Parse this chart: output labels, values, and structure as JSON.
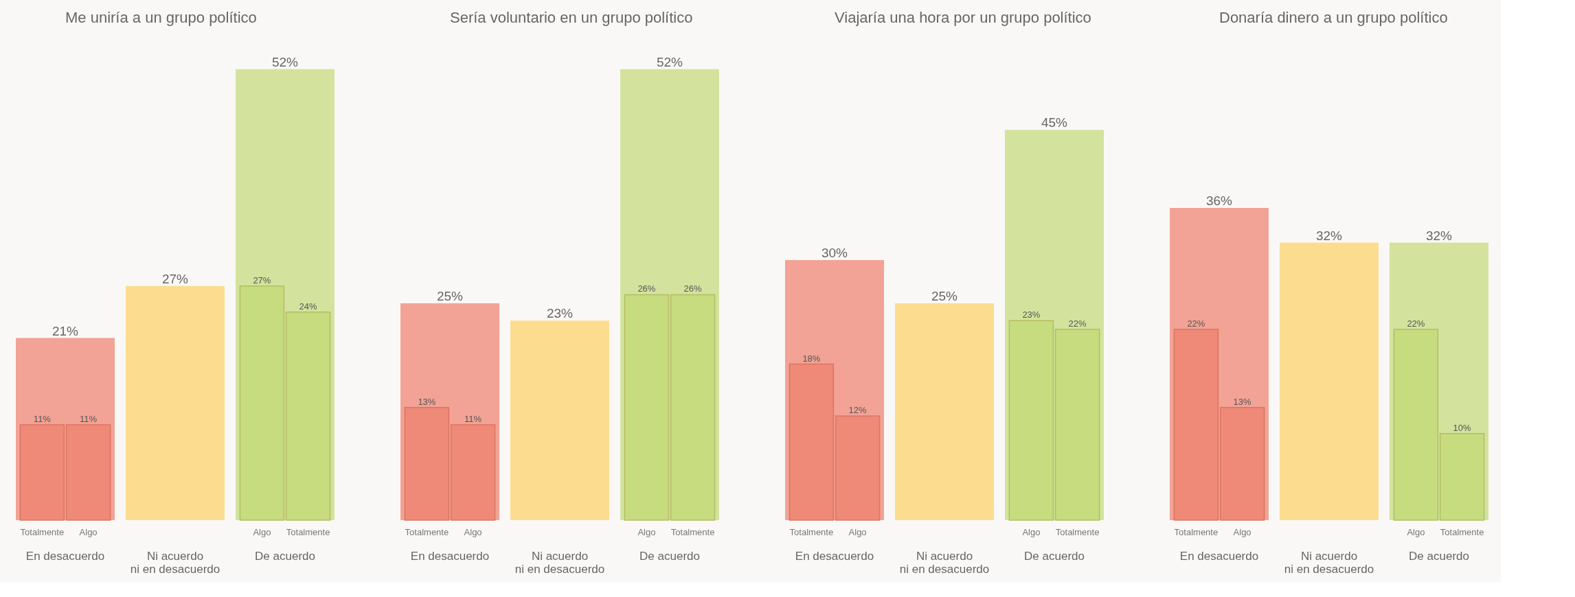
{
  "chart_data": [
    {
      "type": "bar",
      "title": "Me uniría a un grupo político",
      "categories": [
        "En desacuerdo",
        "Ni acuerdo\nni en desacuerdo",
        "De acuerdo"
      ],
      "tick_labels": "x",
      "series": [
        {
          "colors": [
            "#f2a395",
            "#fcdd8f",
            "#d3e39d"
          ],
          "values": [
            21,
            27,
            52
          ],
          "value_labels": [
            "21%",
            "27%",
            "52%"
          ]
        },
        {
          "name": "Totalmente",
          "colors": [
            "#ef8a78",
            null,
            null
          ],
          "values": [
            11,
            null,
            null
          ],
          "value_labels": [
            "11%",
            null,
            null
          ]
        },
        {
          "name": "Algo",
          "colors": [
            "#ef8a78",
            null,
            null
          ],
          "values": [
            11,
            null,
            null
          ],
          "value_labels": [
            "11%",
            null,
            null
          ]
        },
        {
          "name": "Algo",
          "colors": [
            null,
            null,
            "#c6dc7e"
          ],
          "values": [
            null,
            null,
            27
          ],
          "value_labels": [
            null,
            null,
            "27%"
          ]
        },
        {
          "name": "Totalmente",
          "colors": [
            null,
            null,
            "#c6dc7e"
          ],
          "values": [
            null,
            null,
            24
          ],
          "value_labels": [
            null,
            null,
            "24%"
          ]
        }
      ]
    },
    {
      "type": "bar",
      "title": "Sería voluntario en un grupo político",
      "categories": [
        "En desacuerdo",
        "Ni acuerdo\nni en desacuerdo",
        "De acuerdo"
      ],
      "tick_labels": "x",
      "series": [
        {
          "colors": [
            "#f2a395",
            "#fcdd8f",
            "#d3e39d"
          ],
          "values": [
            25,
            23,
            52
          ],
          "value_labels": [
            "25%",
            "23%",
            "52%"
          ]
        },
        {
          "name": "Totalmente",
          "colors": [
            "#ef8a78",
            null,
            null
          ],
          "values": [
            13,
            null,
            null
          ],
          "value_labels": [
            "13%",
            null,
            null
          ]
        },
        {
          "name": "Algo",
          "colors": [
            "#ef8a78",
            null,
            null
          ],
          "values": [
            11,
            null,
            null
          ],
          "value_labels": [
            "11%",
            null,
            null
          ]
        },
        {
          "name": "Algo",
          "colors": [
            null,
            null,
            "#c6dc7e"
          ],
          "values": [
            null,
            null,
            26
          ],
          "value_labels": [
            null,
            null,
            "26%"
          ]
        },
        {
          "name": "Totalmente",
          "colors": [
            null,
            null,
            "#c6dc7e"
          ],
          "values": [
            null,
            null,
            26
          ],
          "value_labels": [
            null,
            null,
            "26%"
          ]
        }
      ]
    },
    {
      "type": "bar",
      "title": "Viajaría una hora por un grupo político",
      "categories": [
        "En desacuerdo",
        "Ni acuerdo\nni en desacuerdo",
        "De acuerdo"
      ],
      "tick_labels": "x",
      "series": [
        {
          "colors": [
            "#f2a395",
            "#fcdd8f",
            "#d3e39d"
          ],
          "values": [
            30,
            25,
            45
          ],
          "value_labels": [
            "30%",
            "25%",
            "45%"
          ]
        },
        {
          "name": "Totalmente",
          "colors": [
            "#ef8a78",
            null,
            null
          ],
          "values": [
            18,
            null,
            null
          ],
          "value_labels": [
            "18%",
            null,
            null
          ]
        },
        {
          "name": "Algo",
          "colors": [
            "#ef8a78",
            null,
            null
          ],
          "values": [
            12,
            null,
            null
          ],
          "value_labels": [
            "12%",
            null,
            null
          ]
        },
        {
          "name": "Algo",
          "colors": [
            null,
            null,
            "#c6dc7e"
          ],
          "values": [
            null,
            null,
            23
          ],
          "value_labels": [
            null,
            null,
            "23%"
          ]
        },
        {
          "name": "Totalmente",
          "colors": [
            null,
            null,
            "#c6dc7e"
          ],
          "values": [
            null,
            null,
            22
          ],
          "value_labels": [
            null,
            null,
            "22%"
          ]
        }
      ]
    },
    {
      "type": "bar",
      "title": "Donaría dinero a un grupo político",
      "categories": [
        "En desacuerdo",
        "Ni acuerdo\nni en desacuerdo",
        "De acuerdo"
      ],
      "tick_labels": "x",
      "series": [
        {
          "colors": [
            "#f2a395",
            "#fcdd8f",
            "#d3e39d"
          ],
          "values": [
            36,
            32,
            32
          ],
          "value_labels": [
            "36%",
            "32%",
            "32%"
          ]
        },
        {
          "name": "Totalmente",
          "colors": [
            "#ef8a78",
            null,
            null
          ],
          "values": [
            22,
            null,
            null
          ],
          "value_labels": [
            "22%",
            null,
            null
          ]
        },
        {
          "name": "Algo",
          "colors": [
            "#ef8a78",
            null,
            null
          ],
          "values": [
            13,
            null,
            null
          ],
          "value_labels": [
            "13%",
            null,
            null
          ]
        },
        {
          "name": "Algo",
          "colors": [
            null,
            null,
            "#c6dc7e"
          ],
          "values": [
            null,
            null,
            22
          ],
          "value_labels": [
            null,
            null,
            "22%"
          ]
        },
        {
          "name": "Totalmente",
          "colors": [
            null,
            null,
            "#c6dc7e"
          ],
          "values": [
            null,
            null,
            10
          ],
          "value_labels": [
            null,
            null,
            "10%"
          ]
        }
      ]
    }
  ]
}
